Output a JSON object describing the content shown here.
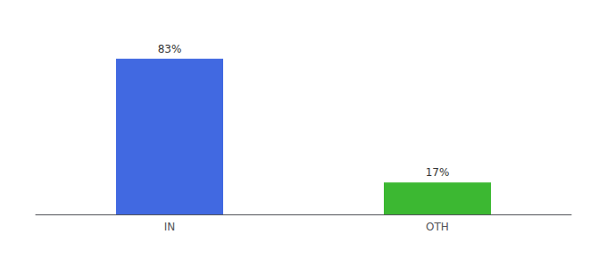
{
  "chart_data": {
    "type": "bar",
    "categories": [
      "IN",
      "OTH"
    ],
    "values": [
      83,
      17
    ],
    "value_labels": [
      "83%",
      "17%"
    ],
    "colors": [
      "#4169e1",
      "#3cb832"
    ],
    "ylim": [
      0,
      100
    ],
    "grid": false,
    "data_labels": true,
    "tick_labels": "x"
  }
}
